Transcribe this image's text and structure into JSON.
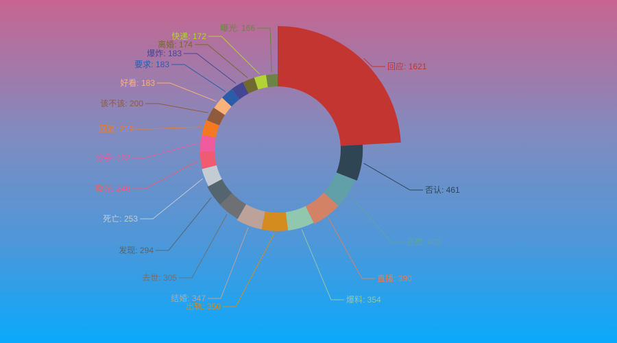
{
  "chart_data": {
    "type": "pie",
    "variant": "rose-donut",
    "title": "",
    "slices": [
      {
        "label": "回应",
        "value": 1621,
        "color": "#c23531"
      },
      {
        "label": "否认",
        "value": 461,
        "color": "#2f4554"
      },
      {
        "label": "开庭",
        "value": 402,
        "color": "#61a0a8"
      },
      {
        "label": "直播",
        "value": 390,
        "color": "#d48265"
      },
      {
        "label": "爆料",
        "value": 354,
        "color": "#91c7ae"
      },
      {
        "label": "出轨",
        "value": 350,
        "color": "#d58c1e"
      },
      {
        "label": "结婚",
        "value": 347,
        "color": "#bda29a"
      },
      {
        "label": "去世",
        "value": 305,
        "color": "#6e7074"
      },
      {
        "label": "发现",
        "value": 294,
        "color": "#546570"
      },
      {
        "label": "死亡",
        "value": 253,
        "color": "#c4ccd3"
      },
      {
        "label": "曝光",
        "value": 240,
        "color": "#f05b72"
      },
      {
        "label": "分手",
        "value": 232,
        "color": "#ef5b9c"
      },
      {
        "label": "回复",
        "value": 219,
        "color": "#f47920"
      },
      {
        "label": "该不该",
        "value": 200,
        "color": "#905a3d"
      },
      {
        "label": "好看",
        "value": 183,
        "color": "#fab27b"
      },
      {
        "label": "要求",
        "value": 183,
        "color": "#2a5caa"
      },
      {
        "label": "爆炸",
        "value": 183,
        "color": "#444693"
      },
      {
        "label": "离婚",
        "value": 174,
        "color": "#726930"
      },
      {
        "label": "快递",
        "value": 172,
        "color": "#b2d235"
      },
      {
        "label": "曝光",
        "value": 166,
        "color": "#6d8346"
      }
    ]
  }
}
